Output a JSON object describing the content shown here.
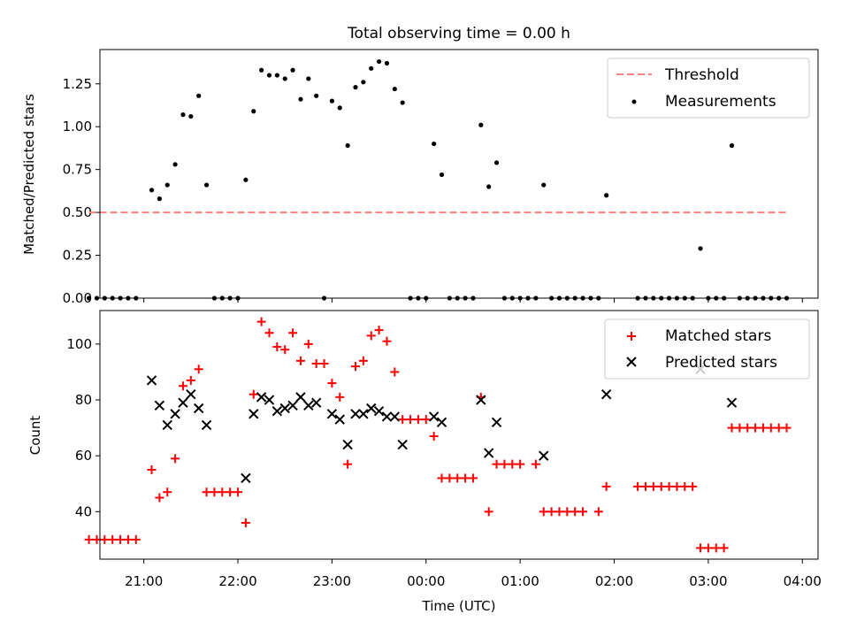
{
  "chart_data": [
    {
      "type": "scatter",
      "title": "Total observing time = 0.00 h",
      "ylabel": "Matched/Predicted stars",
      "xlim": [
        "20:32",
        "04:10"
      ],
      "ylim": [
        0,
        1.45
      ],
      "yticks": [
        "0.00",
        "0.25",
        "0.50",
        "0.75",
        "1.00",
        "1.25"
      ],
      "ytick_values": [
        0,
        0.25,
        0.5,
        0.75,
        1.0,
        1.25
      ],
      "legend_position": "upper right",
      "threshold": {
        "name": "Threshold",
        "value": 0.5,
        "x_range": [
          "20:25",
          "03:50"
        ],
        "color": "#ff8080"
      },
      "series": [
        {
          "name": "Measurements",
          "color": "#000000",
          "points": [
            [
              "20:25",
              0
            ],
            [
              "20:30",
              0
            ],
            [
              "20:35",
              0
            ],
            [
              "20:40",
              0
            ],
            [
              "20:45",
              0
            ],
            [
              "20:50",
              0
            ],
            [
              "20:55",
              0
            ],
            [
              "21:05",
              0.63
            ],
            [
              "21:10",
              0.58
            ],
            [
              "21:15",
              0.66
            ],
            [
              "21:20",
              0.78
            ],
            [
              "21:25",
              1.07
            ],
            [
              "21:30",
              1.06
            ],
            [
              "21:35",
              1.18
            ],
            [
              "21:40",
              0.66
            ],
            [
              "21:45",
              0
            ],
            [
              "21:50",
              0
            ],
            [
              "21:55",
              0
            ],
            [
              "22:00",
              0
            ],
            [
              "22:05",
              0.69
            ],
            [
              "22:10",
              1.09
            ],
            [
              "22:15",
              1.33
            ],
            [
              "22:20",
              1.3
            ],
            [
              "22:25",
              1.3
            ],
            [
              "22:30",
              1.28
            ],
            [
              "22:35",
              1.33
            ],
            [
              "22:40",
              1.16
            ],
            [
              "22:45",
              1.28
            ],
            [
              "22:50",
              1.18
            ],
            [
              "22:55",
              0
            ],
            [
              "23:00",
              1.15
            ],
            [
              "23:05",
              1.11
            ],
            [
              "23:10",
              0.89
            ],
            [
              "23:15",
              1.23
            ],
            [
              "23:20",
              1.26
            ],
            [
              "23:25",
              1.34
            ],
            [
              "23:30",
              1.38
            ],
            [
              "23:35",
              1.37
            ],
            [
              "23:40",
              1.22
            ],
            [
              "23:45",
              1.14
            ],
            [
              "23:50",
              0
            ],
            [
              "23:55",
              0
            ],
            [
              "00:00",
              0
            ],
            [
              "00:05",
              0.9
            ],
            [
              "00:10",
              0.72
            ],
            [
              "00:15",
              0
            ],
            [
              "00:20",
              0
            ],
            [
              "00:25",
              0
            ],
            [
              "00:30",
              0
            ],
            [
              "00:35",
              1.01
            ],
            [
              "00:40",
              0.65
            ],
            [
              "00:45",
              0.79
            ],
            [
              "00:50",
              0
            ],
            [
              "00:55",
              0
            ],
            [
              "01:00",
              0
            ],
            [
              "01:05",
              0
            ],
            [
              "01:10",
              0
            ],
            [
              "01:15",
              0.66
            ],
            [
              "01:20",
              0
            ],
            [
              "01:25",
              0
            ],
            [
              "01:30",
              0
            ],
            [
              "01:35",
              0
            ],
            [
              "01:40",
              0
            ],
            [
              "01:45",
              0
            ],
            [
              "01:50",
              0
            ],
            [
              "01:55",
              0.6
            ],
            [
              "02:15",
              0
            ],
            [
              "02:20",
              0
            ],
            [
              "02:25",
              0
            ],
            [
              "02:30",
              0
            ],
            [
              "02:35",
              0
            ],
            [
              "02:40",
              0
            ],
            [
              "02:45",
              0
            ],
            [
              "02:50",
              0
            ],
            [
              "02:55",
              0.29
            ],
            [
              "03:00",
              0
            ],
            [
              "03:05",
              0
            ],
            [
              "03:10",
              0
            ],
            [
              "03:15",
              0.89
            ],
            [
              "03:20",
              0
            ],
            [
              "03:25",
              0
            ],
            [
              "03:30",
              0
            ],
            [
              "03:35",
              0
            ],
            [
              "03:40",
              0
            ],
            [
              "03:45",
              0
            ],
            [
              "03:50",
              0
            ]
          ]
        }
      ]
    },
    {
      "type": "scatter",
      "xlabel": "Time (UTC)",
      "ylabel": "Count",
      "xlim": [
        "20:32",
        "04:10"
      ],
      "ylim": [
        23,
        112
      ],
      "xticks": [
        "21:00",
        "22:00",
        "23:00",
        "00:00",
        "01:00",
        "02:00",
        "03:00",
        "04:00"
      ],
      "yticks": [
        "40",
        "60",
        "80",
        "100"
      ],
      "ytick_values": [
        40,
        60,
        80,
        100
      ],
      "legend_position": "upper right",
      "series": [
        {
          "name": "Matched stars",
          "marker": "plus",
          "color": "#ff0000",
          "points": [
            [
              "20:25",
              30
            ],
            [
              "20:30",
              30
            ],
            [
              "20:35",
              30
            ],
            [
              "20:40",
              30
            ],
            [
              "20:45",
              30
            ],
            [
              "20:50",
              30
            ],
            [
              "20:55",
              30
            ],
            [
              "21:05",
              55
            ],
            [
              "21:10",
              45
            ],
            [
              "21:15",
              47
            ],
            [
              "21:20",
              59
            ],
            [
              "21:25",
              85
            ],
            [
              "21:30",
              87
            ],
            [
              "21:35",
              91
            ],
            [
              "21:40",
              47
            ],
            [
              "21:45",
              47
            ],
            [
              "21:50",
              47
            ],
            [
              "21:55",
              47
            ],
            [
              "22:00",
              47
            ],
            [
              "22:05",
              36
            ],
            [
              "22:10",
              82
            ],
            [
              "22:15",
              108
            ],
            [
              "22:20",
              104
            ],
            [
              "22:25",
              99
            ],
            [
              "22:30",
              98
            ],
            [
              "22:35",
              104
            ],
            [
              "22:40",
              94
            ],
            [
              "22:45",
              100
            ],
            [
              "22:50",
              93
            ],
            [
              "22:55",
              93
            ],
            [
              "23:00",
              86
            ],
            [
              "23:05",
              81
            ],
            [
              "23:10",
              57
            ],
            [
              "23:15",
              92
            ],
            [
              "23:20",
              94
            ],
            [
              "23:25",
              103
            ],
            [
              "23:30",
              105
            ],
            [
              "23:35",
              101
            ],
            [
              "23:40",
              90
            ],
            [
              "23:45",
              73
            ],
            [
              "23:50",
              73
            ],
            [
              "23:55",
              73
            ],
            [
              "00:00",
              73
            ],
            [
              "00:05",
              67
            ],
            [
              "00:10",
              52
            ],
            [
              "00:15",
              52
            ],
            [
              "00:20",
              52
            ],
            [
              "00:25",
              52
            ],
            [
              "00:30",
              52
            ],
            [
              "00:35",
              81
            ],
            [
              "00:40",
              40
            ],
            [
              "00:45",
              57
            ],
            [
              "00:50",
              57
            ],
            [
              "00:55",
              57
            ],
            [
              "01:00",
              57
            ],
            [
              "01:10",
              57
            ],
            [
              "01:15",
              40
            ],
            [
              "01:20",
              40
            ],
            [
              "01:25",
              40
            ],
            [
              "01:30",
              40
            ],
            [
              "01:35",
              40
            ],
            [
              "01:40",
              40
            ],
            [
              "01:50",
              40
            ],
            [
              "01:55",
              49
            ],
            [
              "02:15",
              49
            ],
            [
              "02:20",
              49
            ],
            [
              "02:25",
              49
            ],
            [
              "02:30",
              49
            ],
            [
              "02:35",
              49
            ],
            [
              "02:40",
              49
            ],
            [
              "02:45",
              49
            ],
            [
              "02:50",
              49
            ],
            [
              "02:55",
              27
            ],
            [
              "03:00",
              27
            ],
            [
              "03:05",
              27
            ],
            [
              "03:10",
              27
            ],
            [
              "03:15",
              70
            ],
            [
              "03:20",
              70
            ],
            [
              "03:25",
              70
            ],
            [
              "03:30",
              70
            ],
            [
              "03:35",
              70
            ],
            [
              "03:40",
              70
            ],
            [
              "03:45",
              70
            ],
            [
              "03:50",
              70
            ]
          ]
        },
        {
          "name": "Predicted stars",
          "marker": "x",
          "color": "#000000",
          "points": [
            [
              "21:05",
              87
            ],
            [
              "21:10",
              78
            ],
            [
              "21:15",
              71
            ],
            [
              "21:20",
              75
            ],
            [
              "21:25",
              79
            ],
            [
              "21:30",
              82
            ],
            [
              "21:35",
              77
            ],
            [
              "21:40",
              71
            ],
            [
              "22:05",
              52
            ],
            [
              "22:10",
              75
            ],
            [
              "22:15",
              81
            ],
            [
              "22:20",
              80
            ],
            [
              "22:25",
              76
            ],
            [
              "22:30",
              77
            ],
            [
              "22:35",
              78
            ],
            [
              "22:40",
              81
            ],
            [
              "22:45",
              78
            ],
            [
              "22:50",
              79
            ],
            [
              "23:00",
              75
            ],
            [
              "23:05",
              73
            ],
            [
              "23:10",
              64
            ],
            [
              "23:15",
              75
            ],
            [
              "23:20",
              75
            ],
            [
              "23:25",
              77
            ],
            [
              "23:30",
              76
            ],
            [
              "23:35",
              74
            ],
            [
              "23:40",
              74
            ],
            [
              "23:45",
              64
            ],
            [
              "00:05",
              74
            ],
            [
              "00:10",
              72
            ],
            [
              "00:35",
              80
            ],
            [
              "00:40",
              61
            ],
            [
              "00:45",
              72
            ],
            [
              "01:15",
              60
            ],
            [
              "01:55",
              82
            ],
            [
              "02:55",
              91
            ],
            [
              "03:15",
              79
            ]
          ]
        }
      ]
    }
  ]
}
